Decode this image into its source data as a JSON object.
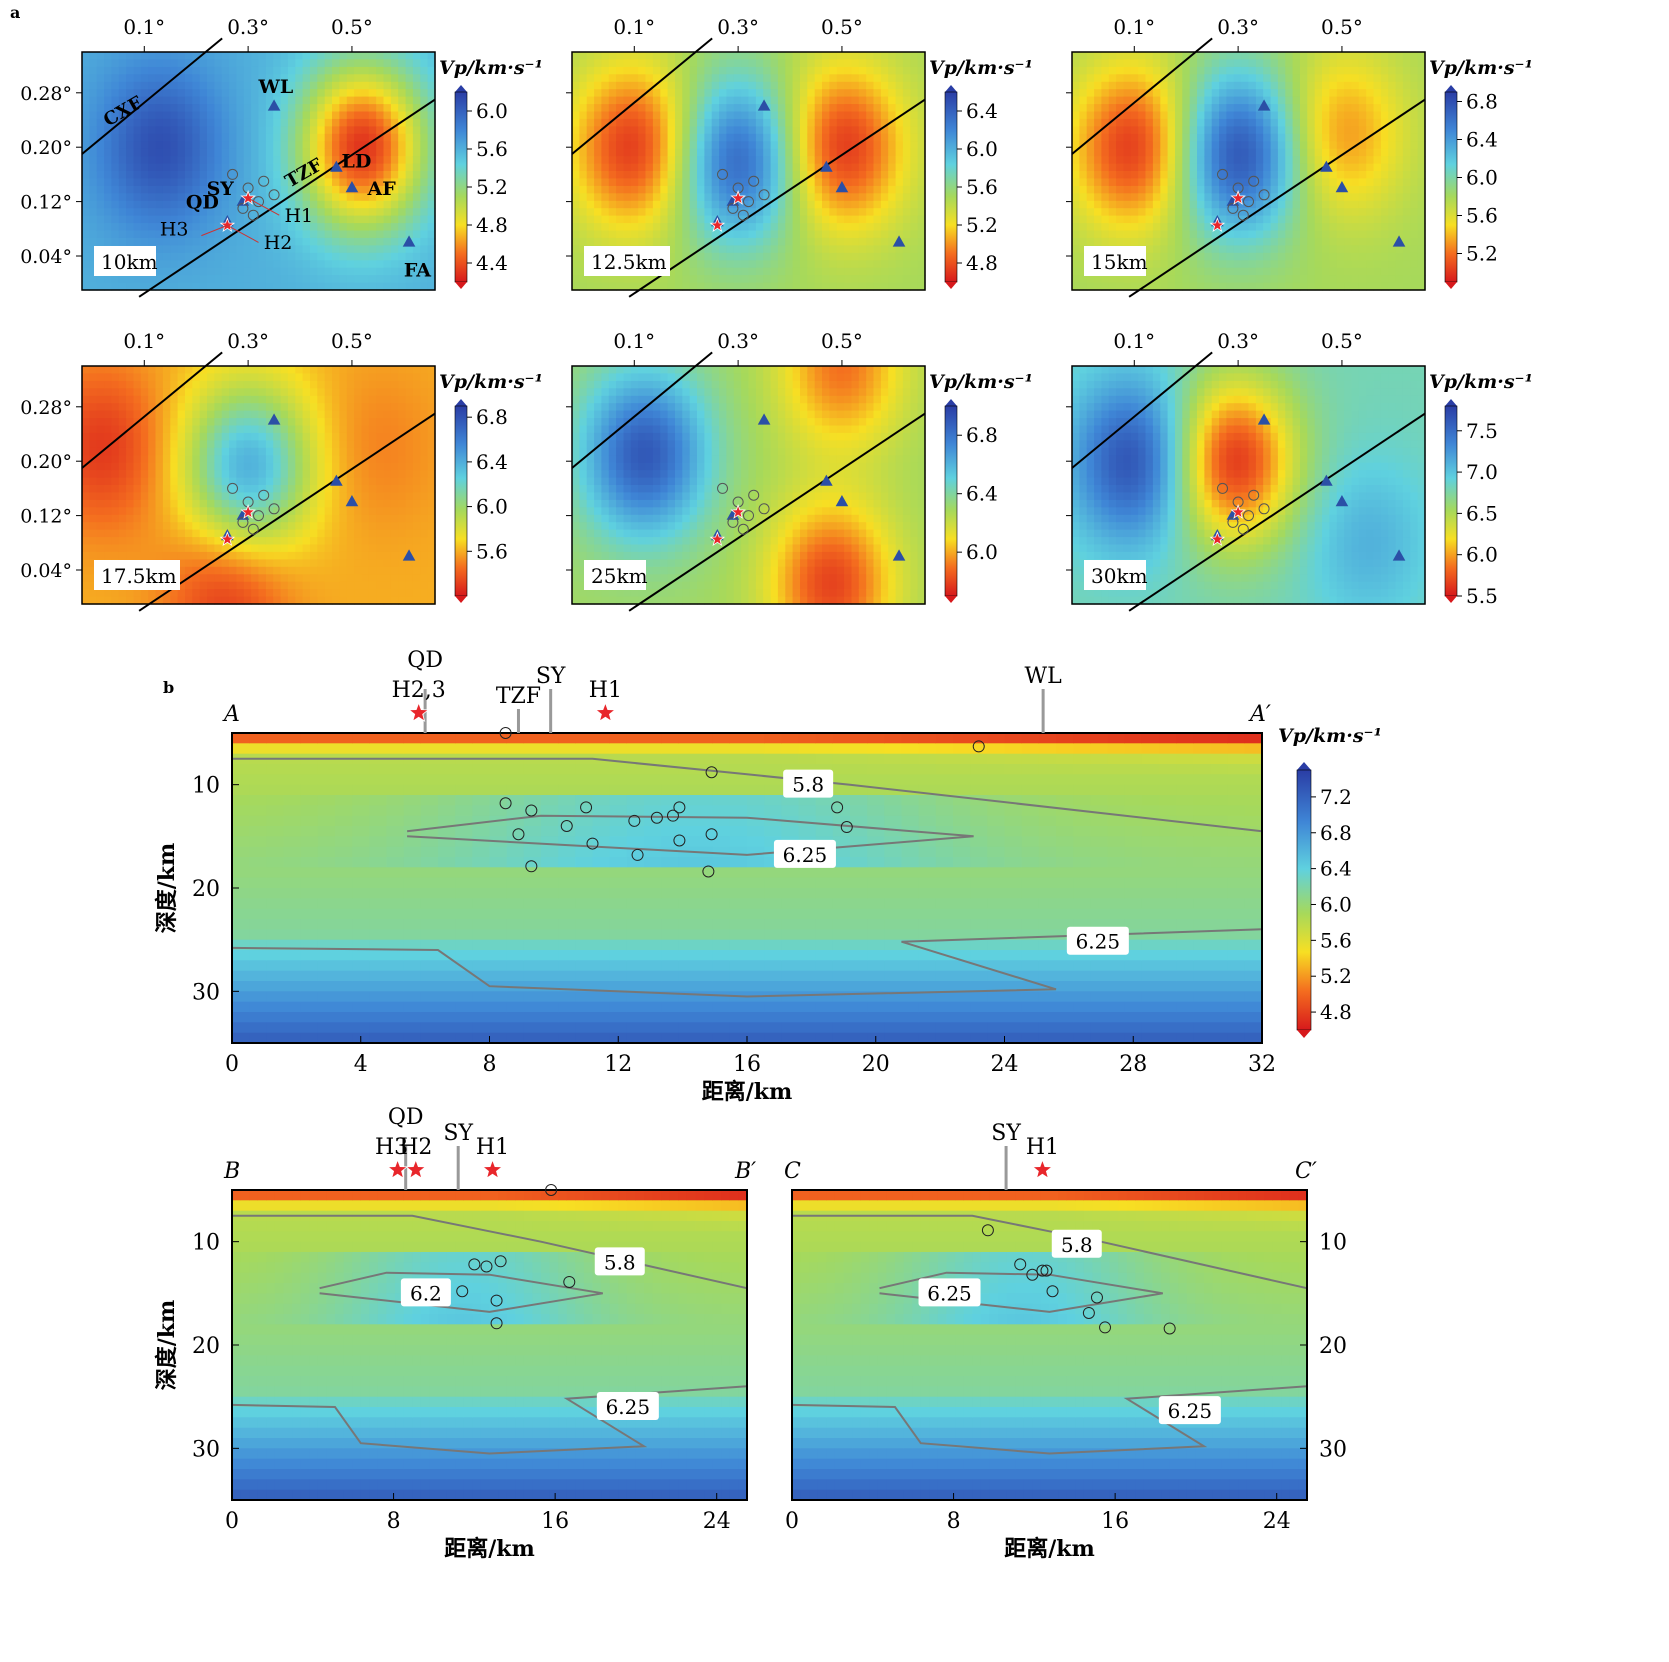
{
  "chart_data": {
    "type": "heatmap",
    "panel_a": {
      "label": "a",
      "lon_ticks": [
        "0.1°",
        "0.3°",
        "0.5°"
      ],
      "lat_ticks": [
        "0.28°",
        "0.20°",
        "0.12°",
        "0.04°"
      ],
      "colorbar_title": "Vp/km·s⁻¹",
      "faults": [
        "CXF",
        "TZF"
      ],
      "stations": [
        {
          "name": "WL",
          "lon": 0.35,
          "lat": 0.26
        },
        {
          "name": "LD",
          "lon": 0.47,
          "lat": 0.17
        },
        {
          "name": "AF",
          "lon": 0.5,
          "lat": 0.14
        },
        {
          "name": "FA",
          "lon": 0.61,
          "lat": 0.06
        },
        {
          "name": "SY",
          "lon": 0.29,
          "lat": 0.12
        },
        {
          "name": "QD",
          "lon": 0.26,
          "lat": 0.09
        }
      ],
      "events": [
        "H1",
        "H2",
        "H3"
      ],
      "maps": [
        {
          "depth": "10km",
          "cbar_ticks": [
            "6.0",
            "5.6",
            "5.2",
            "4.8",
            "4.4"
          ],
          "vmin": 4.2,
          "vmax": 6.2,
          "blobs": [
            {
              "lon": 0.13,
              "lat": 0.2,
              "v": 6.1
            },
            {
              "lon": 0.52,
              "lat": 0.2,
              "v": 4.3
            }
          ],
          "base": 5.6
        },
        {
          "depth": "12.5km",
          "cbar_ticks": [
            "6.4",
            "6.0",
            "5.6",
            "5.2",
            "4.8"
          ],
          "vmin": 4.6,
          "vmax": 6.6,
          "blobs": [
            {
              "lon": 0.1,
              "lat": 0.2,
              "v": 4.7
            },
            {
              "lon": 0.3,
              "lat": 0.18,
              "v": 6.4
            },
            {
              "lon": 0.5,
              "lat": 0.2,
              "v": 4.7
            }
          ],
          "base": 5.5
        },
        {
          "depth": "15km",
          "cbar_ticks": [
            "6.8",
            "6.4",
            "6.0",
            "5.6",
            "5.2"
          ],
          "vmin": 4.9,
          "vmax": 6.9,
          "blobs": [
            {
              "lon": 0.1,
              "lat": 0.2,
              "v": 5.0
            },
            {
              "lon": 0.3,
              "lat": 0.19,
              "v": 6.8
            },
            {
              "lon": 0.5,
              "lat": 0.22,
              "v": 5.3
            }
          ],
          "base": 5.8
        },
        {
          "depth": "17.5km",
          "cbar_ticks": [
            "6.8",
            "6.4",
            "6.0",
            "5.6"
          ],
          "vmin": 5.2,
          "vmax": 6.9,
          "blobs": [
            {
              "lon": 0.02,
              "lat": 0.22,
              "v": 5.3
            },
            {
              "lon": 0.3,
              "lat": 0.19,
              "v": 6.4
            },
            {
              "lon": 0.26,
              "lat": 0.0,
              "v": 5.3
            },
            {
              "lon": 0.55,
              "lat": 0.22,
              "v": 5.5
            }
          ],
          "base": 5.6
        },
        {
          "depth": "25km",
          "cbar_ticks": [
            "6.8",
            "6.4",
            "6.0"
          ],
          "vmin": 5.7,
          "vmax": 7.0,
          "blobs": [
            {
              "lon": 0.12,
              "lat": 0.21,
              "v": 6.9
            },
            {
              "lon": 0.48,
              "lat": 0.02,
              "v": 5.8
            },
            {
              "lon": 0.5,
              "lat": 0.34,
              "v": 5.9
            }
          ],
          "base": 6.3
        },
        {
          "depth": "30km",
          "cbar_ticks": [
            "7.5",
            "7.0",
            "6.5",
            "6.0",
            "5.5"
          ],
          "vmin": 5.5,
          "vmax": 7.8,
          "blobs": [
            {
              "lon": 0.1,
              "lat": 0.2,
              "v": 7.7
            },
            {
              "lon": 0.29,
              "lat": 0.2,
              "v": 5.6
            },
            {
              "lon": 0.55,
              "lat": 0.08,
              "v": 7.1
            }
          ],
          "base": 6.8
        }
      ]
    },
    "panel_b": {
      "label": "b",
      "ylabel": "深度/km",
      "xlabel": "距离/km",
      "colorbar_title": "Vp/km·s⁻¹",
      "colorbar_ticks": [
        "7.2",
        "6.8",
        "6.4",
        "6.0",
        "5.6",
        "5.2",
        "4.8"
      ],
      "profiles": [
        {
          "name": "A",
          "end": "A′",
          "x_ticks": [
            "0",
            "4",
            "8",
            "12",
            "16",
            "20",
            "24",
            "28",
            "32"
          ],
          "xmax": 32,
          "depth_ticks": [
            "10",
            "20",
            "30"
          ],
          "markers": [
            {
              "text": "QD",
              "x": 6.0
            },
            {
              "text": "H2,3",
              "x": 5.8
            },
            {
              "text": "TZF",
              "x": 8.9
            },
            {
              "text": "SY",
              "x": 9.9
            },
            {
              "text": "H1",
              "x": 11.6
            },
            {
              "text": "WL",
              "x": 25.2
            }
          ],
          "contour_labels": [
            {
              "text": "5.8",
              "x": 17.9,
              "z": 10.0
            },
            {
              "text": "6.25",
              "x": 17.8,
              "z": 16.8
            },
            {
              "text": "6.25",
              "x": 26.9,
              "z": 25.2
            }
          ],
          "events": [
            [
              8.5,
              5.0
            ],
            [
              23.2,
              6.3
            ],
            [
              14.9,
              8.8
            ],
            [
              8.5,
              11.8
            ],
            [
              9.3,
              12.5
            ],
            [
              11.0,
              12.2
            ],
            [
              13.9,
              12.2
            ],
            [
              18.8,
              12.2
            ],
            [
              12.5,
              13.5
            ],
            [
              13.2,
              13.2
            ],
            [
              13.7,
              13.0
            ],
            [
              10.4,
              14.0
            ],
            [
              19.1,
              14.1
            ],
            [
              8.9,
              14.8
            ],
            [
              14.9,
              14.8
            ],
            [
              11.2,
              15.7
            ],
            [
              13.9,
              15.4
            ],
            [
              12.6,
              16.8
            ],
            [
              9.3,
              17.9
            ],
            [
              14.8,
              18.4
            ]
          ]
        },
        {
          "name": "B",
          "end": "B′",
          "x_ticks": [
            "0",
            "8",
            "16",
            "24"
          ],
          "xmax": 25.5,
          "depth_ticks": [
            "10",
            "20",
            "30"
          ],
          "markers": [
            {
              "text": "QD",
              "x": 8.6
            },
            {
              "text": "H3",
              "x": 8.2
            },
            {
              "text": "H2",
              "x": 9.1
            },
            {
              "text": "SY",
              "x": 11.2
            },
            {
              "text": "H1",
              "x": 12.9
            }
          ],
          "contour_labels": [
            {
              "text": "5.8",
              "x": 19.2,
              "z": 12.0
            },
            {
              "text": "6.2",
              "x": 9.6,
              "z": 15.0
            },
            {
              "text": "6.25",
              "x": 19.6,
              "z": 26.0
            }
          ],
          "events": [
            [
              15.8,
              5.0
            ],
            [
              12.0,
              12.2
            ],
            [
              12.6,
              12.4
            ],
            [
              13.3,
              11.9
            ],
            [
              16.7,
              13.9
            ],
            [
              11.4,
              14.8
            ],
            [
              13.1,
              15.7
            ],
            [
              13.1,
              17.9
            ]
          ]
        },
        {
          "name": "C",
          "end": "C′",
          "x_ticks": [
            "0",
            "8",
            "16",
            "24"
          ],
          "xmax": 25.5,
          "depth_ticks": [
            "10",
            "20",
            "30"
          ],
          "markers": [
            {
              "text": "SY",
              "x": 10.6
            },
            {
              "text": "H1",
              "x": 12.4
            }
          ],
          "contour_labels": [
            {
              "text": "5.8",
              "x": 14.1,
              "z": 10.3
            },
            {
              "text": "6.25",
              "x": 7.8,
              "z": 15.0
            },
            {
              "text": "6.25",
              "x": 19.7,
              "z": 26.4
            }
          ],
          "events": [
            [
              9.7,
              8.9
            ],
            [
              11.3,
              12.2
            ],
            [
              11.9,
              13.2
            ],
            [
              12.4,
              12.8
            ],
            [
              12.6,
              12.8
            ],
            [
              12.9,
              14.8
            ],
            [
              15.1,
              15.4
            ],
            [
              14.7,
              16.9
            ],
            [
              15.5,
              18.3
            ],
            [
              18.7,
              18.4
            ]
          ]
        }
      ]
    }
  }
}
